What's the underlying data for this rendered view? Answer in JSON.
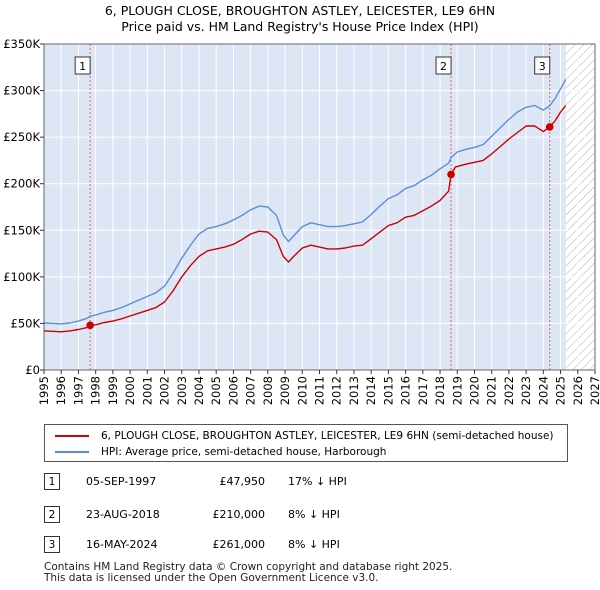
{
  "title_line1": "6, PLOUGH CLOSE, BROUGHTON ASTLEY, LEICESTER, LE9 6HN",
  "title_line2": "Price paid vs. HM Land Registry's House Price Index (HPI)",
  "colors": {
    "property": "#cc0000",
    "hpi": "#5b8fd4",
    "bg": "#dde6f4",
    "marker_line": "#dd6666"
  },
  "chart_data": {
    "type": "line",
    "title": "Price paid vs. HM Land Registry's House Price Index (HPI)",
    "xlabel": "",
    "ylabel": "",
    "xlim": [
      1995,
      2027
    ],
    "ylim": [
      0,
      350000
    ],
    "x_ticks": [
      "1995",
      "1996",
      "1997",
      "1998",
      "1999",
      "2000",
      "2001",
      "2002",
      "2003",
      "2004",
      "2005",
      "2006",
      "2007",
      "2008",
      "2009",
      "2010",
      "2011",
      "2012",
      "2013",
      "2014",
      "2015",
      "2016",
      "2017",
      "2018",
      "2019",
      "2020",
      "2021",
      "2022",
      "2023",
      "2024",
      "2025",
      "2026",
      "2027"
    ],
    "y_ticks": [
      {
        "value": 0,
        "label": "£0"
      },
      {
        "value": 50000,
        "label": "£50K"
      },
      {
        "value": 100000,
        "label": "£100K"
      },
      {
        "value": 150000,
        "label": "£150K"
      },
      {
        "value": 200000,
        "label": "£200K"
      },
      {
        "value": 250000,
        "label": "£250K"
      },
      {
        "value": 300000,
        "label": "£300K"
      },
      {
        "value": 350000,
        "label": "£350K"
      }
    ],
    "data_end": 2025.3,
    "series": [
      {
        "name": "6, PLOUGH CLOSE, BROUGHTON ASTLEY, LEICESTER, LE9 6HN (semi-detached house)",
        "points": [
          [
            1995.0,
            42000
          ],
          [
            1995.5,
            41500
          ],
          [
            1996.0,
            41000
          ],
          [
            1996.5,
            42000
          ],
          [
            1997.0,
            43500
          ],
          [
            1997.5,
            45500
          ],
          [
            1997.68,
            47950
          ],
          [
            1998.0,
            48500
          ],
          [
            1998.5,
            51000
          ],
          [
            1999.0,
            52500
          ],
          [
            1999.5,
            55000
          ],
          [
            2000.0,
            58000
          ],
          [
            2000.5,
            61000
          ],
          [
            2001.0,
            64000
          ],
          [
            2001.5,
            67000
          ],
          [
            2002.0,
            73000
          ],
          [
            2002.5,
            85000
          ],
          [
            2003.0,
            100000
          ],
          [
            2003.5,
            112000
          ],
          [
            2004.0,
            122000
          ],
          [
            2004.5,
            128000
          ],
          [
            2005.0,
            130000
          ],
          [
            2005.5,
            132000
          ],
          [
            2006.0,
            135000
          ],
          [
            2006.5,
            140000
          ],
          [
            2007.0,
            146000
          ],
          [
            2007.5,
            149000
          ],
          [
            2008.0,
            148000
          ],
          [
            2008.5,
            140000
          ],
          [
            2008.9,
            122000
          ],
          [
            2009.2,
            116000
          ],
          [
            2009.5,
            122000
          ],
          [
            2010.0,
            131000
          ],
          [
            2010.5,
            134000
          ],
          [
            2011.0,
            132000
          ],
          [
            2011.5,
            130000
          ],
          [
            2012.0,
            130000
          ],
          [
            2012.5,
            131000
          ],
          [
            2013.0,
            133000
          ],
          [
            2013.5,
            134000
          ],
          [
            2014.0,
            141000
          ],
          [
            2014.5,
            148000
          ],
          [
            2015.0,
            155000
          ],
          [
            2015.5,
            158000
          ],
          [
            2016.0,
            164000
          ],
          [
            2016.5,
            166000
          ],
          [
            2017.0,
            171000
          ],
          [
            2017.5,
            176000
          ],
          [
            2018.0,
            182000
          ],
          [
            2018.5,
            192000
          ],
          [
            2018.64,
            210000
          ],
          [
            2018.9,
            218000
          ],
          [
            2019.5,
            221000
          ],
          [
            2020.0,
            223000
          ],
          [
            2020.5,
            225000
          ],
          [
            2021.0,
            232000
          ],
          [
            2021.5,
            240000
          ],
          [
            2022.0,
            248000
          ],
          [
            2022.5,
            255000
          ],
          [
            2023.0,
            262000
          ],
          [
            2023.5,
            262000
          ],
          [
            2024.0,
            256000
          ],
          [
            2024.37,
            261000
          ],
          [
            2024.7,
            268000
          ],
          [
            2025.0,
            277000
          ],
          [
            2025.3,
            284000
          ]
        ]
      },
      {
        "name": "HPI: Average price, semi-detached house, Harborough",
        "points": [
          [
            1995.0,
            50500
          ],
          [
            1995.5,
            50000
          ],
          [
            1996.0,
            49500
          ],
          [
            1996.5,
            50500
          ],
          [
            1997.0,
            52500
          ],
          [
            1997.5,
            55500
          ],
          [
            1997.68,
            57800
          ],
          [
            1998.0,
            59000
          ],
          [
            1998.5,
            62000
          ],
          [
            1999.0,
            64000
          ],
          [
            1999.5,
            67000
          ],
          [
            2000.0,
            71000
          ],
          [
            2000.5,
            75000
          ],
          [
            2001.0,
            79000
          ],
          [
            2001.5,
            83000
          ],
          [
            2002.0,
            90000
          ],
          [
            2002.5,
            104000
          ],
          [
            2003.0,
            120000
          ],
          [
            2003.5,
            134000
          ],
          [
            2004.0,
            146000
          ],
          [
            2004.5,
            152000
          ],
          [
            2005.0,
            154000
          ],
          [
            2005.5,
            157000
          ],
          [
            2006.0,
            161000
          ],
          [
            2006.5,
            166000
          ],
          [
            2007.0,
            172000
          ],
          [
            2007.5,
            176000
          ],
          [
            2008.0,
            175000
          ],
          [
            2008.5,
            166000
          ],
          [
            2008.9,
            145000
          ],
          [
            2009.2,
            138000
          ],
          [
            2009.5,
            144000
          ],
          [
            2010.0,
            154000
          ],
          [
            2010.5,
            158000
          ],
          [
            2011.0,
            156000
          ],
          [
            2011.5,
            154000
          ],
          [
            2012.0,
            154000
          ],
          [
            2012.5,
            155000
          ],
          [
            2013.0,
            157000
          ],
          [
            2013.5,
            159000
          ],
          [
            2014.0,
            167000
          ],
          [
            2014.5,
            176000
          ],
          [
            2015.0,
            184000
          ],
          [
            2015.5,
            188000
          ],
          [
            2016.0,
            195000
          ],
          [
            2016.5,
            198000
          ],
          [
            2017.0,
            204000
          ],
          [
            2017.5,
            209000
          ],
          [
            2018.0,
            216000
          ],
          [
            2018.5,
            222000
          ],
          [
            2018.64,
            228300
          ],
          [
            2019.0,
            234000
          ],
          [
            2019.5,
            237000
          ],
          [
            2020.0,
            239000
          ],
          [
            2020.5,
            242000
          ],
          [
            2021.0,
            251000
          ],
          [
            2021.5,
            260000
          ],
          [
            2022.0,
            269000
          ],
          [
            2022.5,
            277000
          ],
          [
            2023.0,
            282000
          ],
          [
            2023.5,
            284000
          ],
          [
            2024.0,
            279000
          ],
          [
            2024.37,
            283700
          ],
          [
            2024.7,
            292000
          ],
          [
            2025.0,
            302000
          ],
          [
            2025.3,
            312000
          ]
        ]
      }
    ],
    "sales": [
      {
        "id": "1",
        "date": "05-SEP-1997",
        "price_label": "£47,950",
        "x": 1997.68,
        "price": 47950,
        "hpi_diff": "17% ↓ HPI"
      },
      {
        "id": "2",
        "date": "23-AUG-2018",
        "price_label": "£210,000",
        "x": 2018.64,
        "price": 210000,
        "hpi_diff": "8% ↓ HPI"
      },
      {
        "id": "3",
        "date": "16-MAY-2024",
        "price_label": "£261,000",
        "x": 2024.37,
        "price": 261000,
        "hpi_diff": "8% ↓ HPI"
      }
    ]
  },
  "legend": {
    "property_label": "6, PLOUGH CLOSE, BROUGHTON ASTLEY, LEICESTER, LE9 6HN (semi-detached house)",
    "hpi_label": "HPI: Average price, semi-detached house, Harborough"
  },
  "footer": {
    "line1": "Contains HM Land Registry data © Crown copyright and database right 2025.",
    "line2": "This data is licensed under the Open Government Licence v3.0."
  }
}
